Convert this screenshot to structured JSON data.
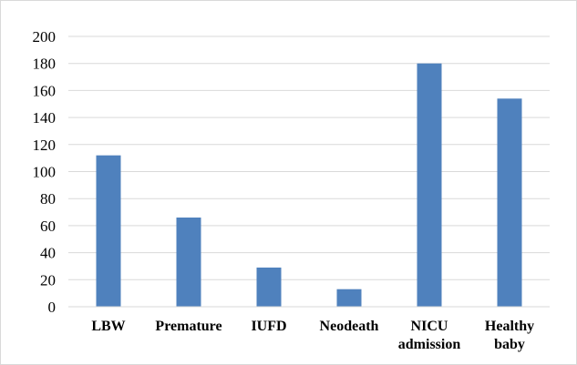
{
  "chart_data": {
    "type": "bar",
    "categories": [
      "LBW",
      "Premature",
      "IUFD",
      "Neodeath",
      "NICU admission",
      "Healthy baby"
    ],
    "category_lines": [
      [
        "LBW"
      ],
      [
        "Premature"
      ],
      [
        "IUFD"
      ],
      [
        "Neodeath"
      ],
      [
        "NICU",
        "admission"
      ],
      [
        "Healthy",
        "baby"
      ]
    ],
    "values": [
      112,
      66,
      29,
      13,
      180,
      154
    ],
    "title": "",
    "xlabel": "",
    "ylabel": "",
    "ylim": [
      0,
      200
    ],
    "yticks": [
      0,
      20,
      40,
      60,
      80,
      100,
      120,
      140,
      160,
      180,
      200
    ],
    "grid": true,
    "legend": "none",
    "bar_color": "#4f81bd",
    "grid_color": "#d9d9d9"
  }
}
